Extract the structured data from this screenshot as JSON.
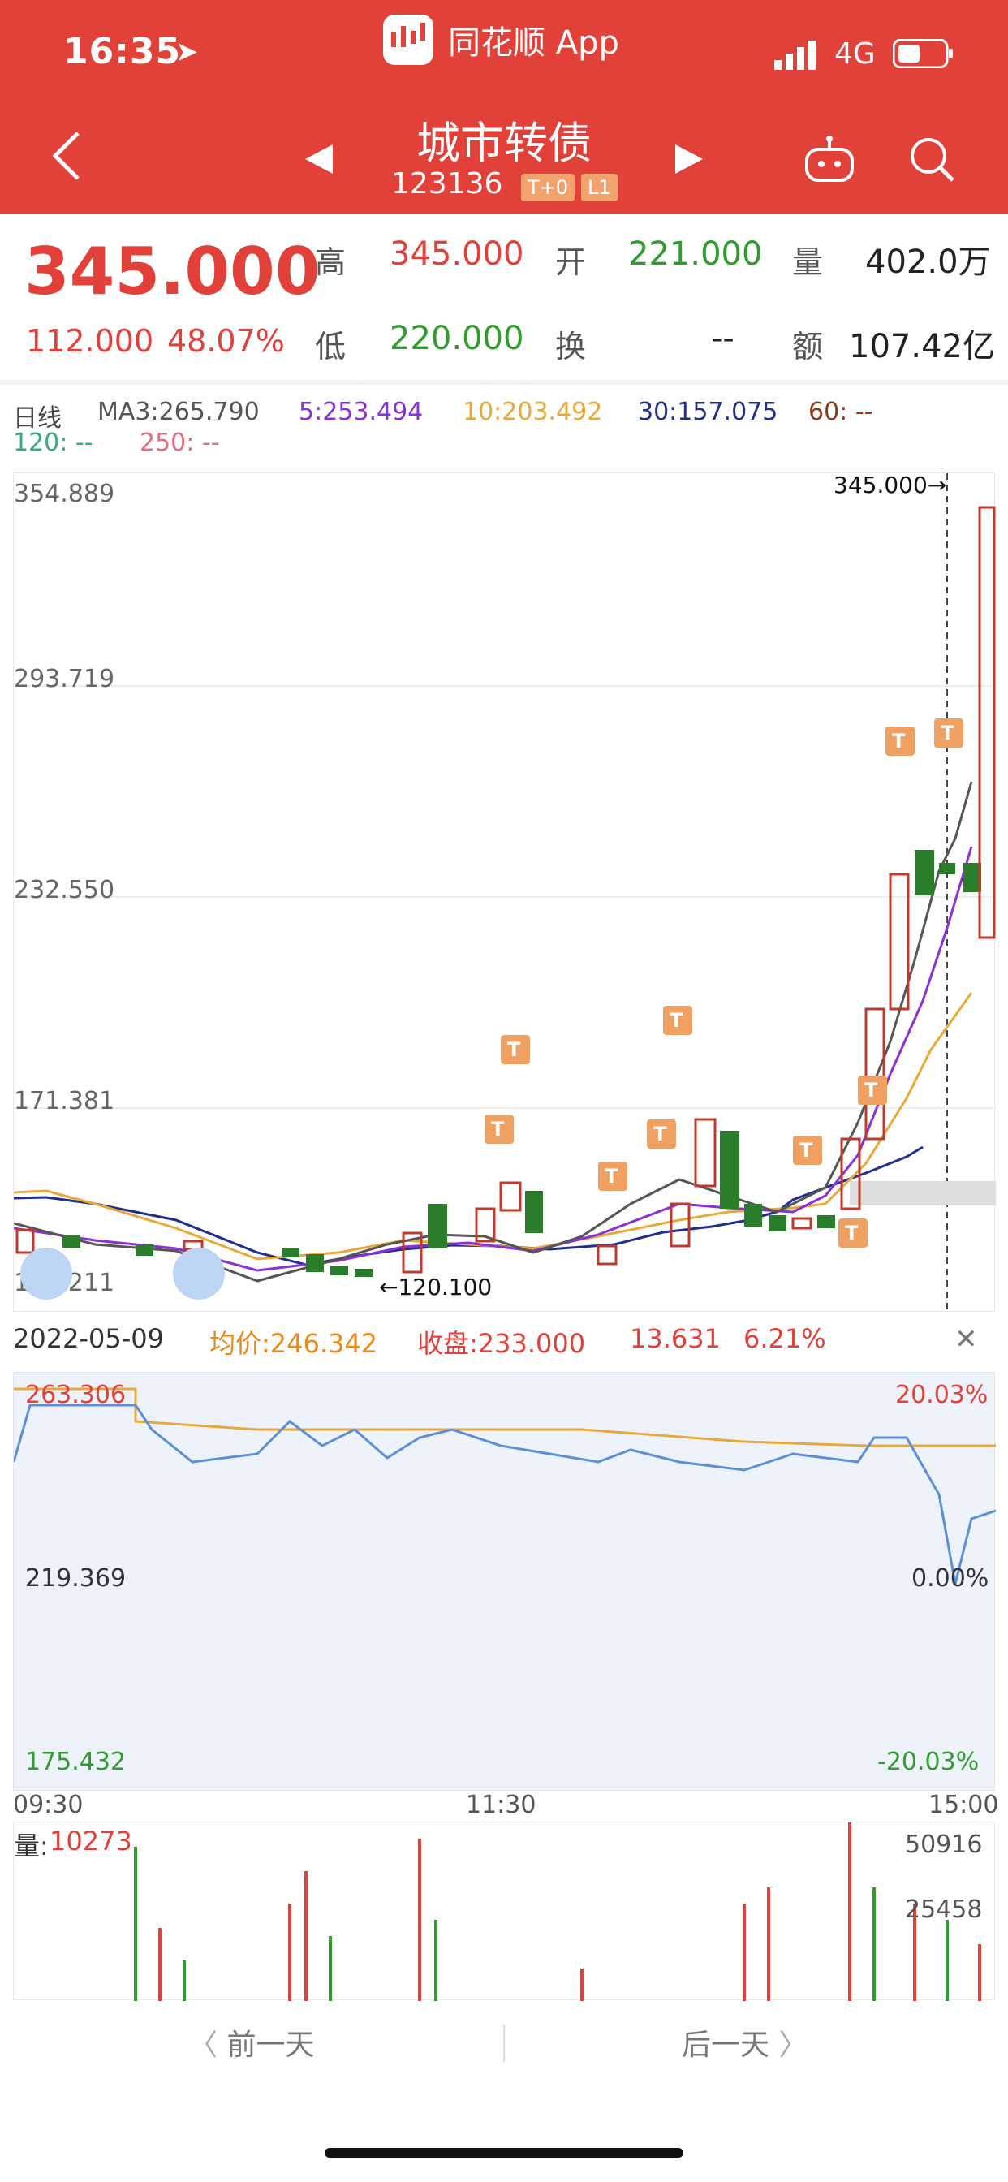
{
  "status": {
    "time": "16:35",
    "network": "4G"
  },
  "app": {
    "name": "同花顺 App"
  },
  "header": {
    "title": "城市转债",
    "code": "123136",
    "tag1": "T+0",
    "tag2": "L1"
  },
  "quote": {
    "price": "345.000",
    "change": "112.000",
    "change_pct": "48.07%",
    "high_label": "高",
    "high": "345.000",
    "low_label": "低",
    "low": "220.000",
    "open_label": "开",
    "open": "221.000",
    "turnover_label": "换",
    "turnover": "--",
    "vol_label": "量",
    "vol": "402.0万",
    "amount_label": "额",
    "amount": "107.42亿"
  },
  "ma": {
    "label": "日线",
    "ma3": "MA3:265.790",
    "ma5": "5:253.494",
    "ma10": "10:203.492",
    "ma30": "30:157.075",
    "ma60": "60: --",
    "ma120": "120: --",
    "ma250": "250: --"
  },
  "kline_axis": {
    "y1": "354.889",
    "y2": "293.719",
    "y3": "232.550",
    "y4": "171.381",
    "y5": "110.211",
    "top_mark": "345.000→",
    "low_mark": "←120.100"
  },
  "intraday": {
    "date": "2022-05-09",
    "avg": "均价:246.342",
    "close": "收盘:233.000",
    "chg": "13.631",
    "pct": "6.21%",
    "y_top": "263.306",
    "y_mid": "219.369",
    "y_bot": "175.432",
    "pct_top": "20.03%",
    "pct_mid": "0.00%",
    "pct_bot": "-20.03%",
    "t_start": "09:30",
    "t_mid": "11:30",
    "t_end": "15:00"
  },
  "volume": {
    "label": "量:",
    "value": "10273",
    "y_top": "50916",
    "y_mid": "25458"
  },
  "footer": {
    "prev": "前一天",
    "next": "后一天"
  },
  "colors": {
    "brand": "#e2413a",
    "up": "#e2413a",
    "down": "#2f9d2c",
    "ma3": "#555555",
    "ma5": "#8b2fd6",
    "ma10": "#e9a93a",
    "ma30": "#1f2f8c",
    "ma60": "#8b3a1a"
  }
}
